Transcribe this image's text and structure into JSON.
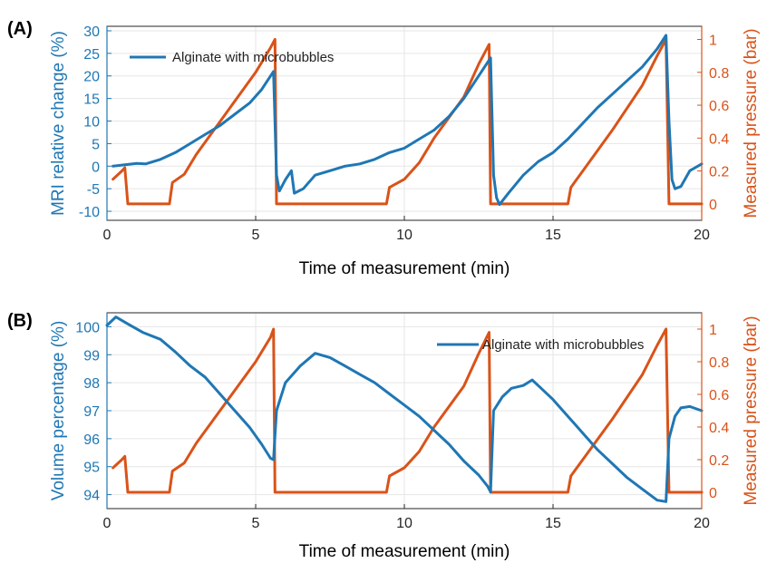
{
  "colors": {
    "left": "#1f77b4",
    "right": "#d95319",
    "grid": "#e6e6e6",
    "axis": "#262626"
  },
  "chart_data": [
    {
      "type": "line",
      "panel_label": "(A)",
      "xlabel": "Time of measurement (min)",
      "ylabel_left": "MRI relative change (%)",
      "ylabel_right": "Measured pressure (bar)",
      "xlim": [
        0,
        20
      ],
      "ylim_left": [
        -12,
        31
      ],
      "ylim_right": [
        -0.1,
        1.08
      ],
      "xticks": [
        "0",
        "5",
        "10",
        "15",
        "20"
      ],
      "yticks_left": [
        "-10",
        "-5",
        "0",
        "5",
        "10",
        "15",
        "20",
        "25",
        "30"
      ],
      "yticks_right": [
        "0",
        "0.2",
        "0.4",
        "0.6",
        "0.8",
        "1"
      ],
      "grid": true,
      "legend": {
        "position": "top-left",
        "entries": [
          "Alginate with microbubbles"
        ]
      },
      "series": [
        {
          "name": "Alginate with microbubbles",
          "axis": "left",
          "color": "#1f77b4",
          "points": [
            [
              0.2,
              0
            ],
            [
              0.6,
              0.3
            ],
            [
              1.0,
              0.6
            ],
            [
              1.3,
              0.5
            ],
            [
              1.8,
              1.5
            ],
            [
              2.3,
              3
            ],
            [
              2.8,
              5
            ],
            [
              3.3,
              7
            ],
            [
              3.8,
              9
            ],
            [
              4.3,
              11.5
            ],
            [
              4.8,
              14
            ],
            [
              5.2,
              17
            ],
            [
              5.6,
              21
            ],
            [
              5.7,
              -2
            ],
            [
              5.8,
              -5.5
            ],
            [
              6.0,
              -3
            ],
            [
              6.2,
              -1
            ],
            [
              6.3,
              -6
            ],
            [
              6.6,
              -5
            ],
            [
              7.0,
              -2
            ],
            [
              7.5,
              -1
            ],
            [
              8.0,
              0
            ],
            [
              8.5,
              0.5
            ],
            [
              9.0,
              1.5
            ],
            [
              9.5,
              3
            ],
            [
              10.0,
              4
            ],
            [
              10.5,
              6
            ],
            [
              11.0,
              8
            ],
            [
              11.5,
              11
            ],
            [
              12.0,
              15
            ],
            [
              12.5,
              20
            ],
            [
              12.9,
              24
            ],
            [
              13.0,
              -2
            ],
            [
              13.1,
              -7
            ],
            [
              13.2,
              -8.5
            ],
            [
              13.5,
              -6
            ],
            [
              14.0,
              -2
            ],
            [
              14.5,
              1
            ],
            [
              15.0,
              3
            ],
            [
              15.5,
              6
            ],
            [
              16.0,
              9.5
            ],
            [
              16.5,
              13
            ],
            [
              17.0,
              16
            ],
            [
              17.5,
              19
            ],
            [
              18.0,
              22
            ],
            [
              18.5,
              26
            ],
            [
              18.8,
              29
            ],
            [
              18.9,
              10
            ],
            [
              19.0,
              -3
            ],
            [
              19.1,
              -5
            ],
            [
              19.3,
              -4.5
            ],
            [
              19.6,
              -1
            ],
            [
              20.0,
              0.5
            ]
          ]
        },
        {
          "name": "",
          "axis": "right",
          "color": "#d95319",
          "points": [
            [
              0.2,
              0.15
            ],
            [
              0.5,
              0.2
            ],
            [
              0.6,
              0.22
            ],
            [
              0.7,
              0
            ],
            [
              2.1,
              0
            ],
            [
              2.2,
              0.13
            ],
            [
              2.6,
              0.18
            ],
            [
              3.0,
              0.3
            ],
            [
              4.0,
              0.55
            ],
            [
              5.0,
              0.8
            ],
            [
              5.5,
              0.95
            ],
            [
              5.65,
              1.0
            ],
            [
              5.7,
              0
            ],
            [
              9.4,
              0
            ],
            [
              9.5,
              0.1
            ],
            [
              10.0,
              0.15
            ],
            [
              10.5,
              0.25
            ],
            [
              11.0,
              0.4
            ],
            [
              12.0,
              0.65
            ],
            [
              12.5,
              0.85
            ],
            [
              12.85,
              0.97
            ],
            [
              12.9,
              0
            ],
            [
              15.5,
              0
            ],
            [
              15.6,
              0.1
            ],
            [
              16.0,
              0.2
            ],
            [
              17.0,
              0.45
            ],
            [
              18.0,
              0.72
            ],
            [
              18.5,
              0.9
            ],
            [
              18.8,
              1.0
            ],
            [
              18.9,
              0
            ],
            [
              20.0,
              0
            ]
          ]
        }
      ]
    },
    {
      "type": "line",
      "panel_label": "(B)",
      "xlabel": "Time of measurement (min)",
      "ylabel_left": "Volume percentage (%)",
      "ylabel_right": "Measured pressure (bar)",
      "xlim": [
        0,
        20
      ],
      "ylim_left": [
        93.5,
        100.5
      ],
      "ylim_right": [
        -0.1,
        1.1
      ],
      "xticks": [
        "0",
        "5",
        "10",
        "15",
        "20"
      ],
      "yticks_left": [
        "94",
        "95",
        "96",
        "97",
        "98",
        "99",
        "100"
      ],
      "yticks_right": [
        "0",
        "0.2",
        "0.4",
        "0.6",
        "0.8",
        "1"
      ],
      "grid": true,
      "legend": {
        "position": "top-right",
        "entries": [
          "Alginate with microbubbles"
        ]
      },
      "series": [
        {
          "name": "Alginate with microbubbles",
          "axis": "left",
          "color": "#1f77b4",
          "points": [
            [
              0,
              100.05
            ],
            [
              0.3,
              100.35
            ],
            [
              0.7,
              100.1
            ],
            [
              1.2,
              99.8
            ],
            [
              1.8,
              99.55
            ],
            [
              2.3,
              99.1
            ],
            [
              2.8,
              98.6
            ],
            [
              3.3,
              98.2
            ],
            [
              3.8,
              97.6
            ],
            [
              4.3,
              97.0
            ],
            [
              4.8,
              96.4
            ],
            [
              5.2,
              95.8
            ],
            [
              5.5,
              95.3
            ],
            [
              5.6,
              95.25
            ],
            [
              5.7,
              97.0
            ],
            [
              6.0,
              98.0
            ],
            [
              6.5,
              98.6
            ],
            [
              7.0,
              99.05
            ],
            [
              7.5,
              98.9
            ],
            [
              8.0,
              98.6
            ],
            [
              8.5,
              98.3
            ],
            [
              9.0,
              98.0
            ],
            [
              9.5,
              97.6
            ],
            [
              10.0,
              97.2
            ],
            [
              10.5,
              96.8
            ],
            [
              11.0,
              96.3
            ],
            [
              11.5,
              95.8
            ],
            [
              12.0,
              95.2
            ],
            [
              12.5,
              94.7
            ],
            [
              12.8,
              94.3
            ],
            [
              12.9,
              94.1
            ],
            [
              13.0,
              97.0
            ],
            [
              13.3,
              97.5
            ],
            [
              13.6,
              97.8
            ],
            [
              14.0,
              97.9
            ],
            [
              14.3,
              98.1
            ],
            [
              14.6,
              97.8
            ],
            [
              15.0,
              97.4
            ],
            [
              15.5,
              96.8
            ],
            [
              16.0,
              96.2
            ],
            [
              16.5,
              95.6
            ],
            [
              17.0,
              95.1
            ],
            [
              17.5,
              94.6
            ],
            [
              18.0,
              94.2
            ],
            [
              18.5,
              93.8
            ],
            [
              18.8,
              93.75
            ],
            [
              18.9,
              96.0
            ],
            [
              19.1,
              96.8
            ],
            [
              19.3,
              97.1
            ],
            [
              19.6,
              97.15
            ],
            [
              20.0,
              97.0
            ]
          ]
        },
        {
          "name": "",
          "axis": "right",
          "color": "#d95319",
          "points": [
            [
              0.2,
              0.15
            ],
            [
              0.5,
              0.2
            ],
            [
              0.6,
              0.22
            ],
            [
              0.7,
              0
            ],
            [
              2.1,
              0
            ],
            [
              2.2,
              0.13
            ],
            [
              2.6,
              0.18
            ],
            [
              3.0,
              0.3
            ],
            [
              4.0,
              0.55
            ],
            [
              5.0,
              0.8
            ],
            [
              5.5,
              0.95
            ],
            [
              5.6,
              1.0
            ],
            [
              5.65,
              0
            ],
            [
              9.4,
              0
            ],
            [
              9.5,
              0.1
            ],
            [
              10.0,
              0.15
            ],
            [
              10.5,
              0.25
            ],
            [
              11.0,
              0.4
            ],
            [
              12.0,
              0.65
            ],
            [
              12.5,
              0.85
            ],
            [
              12.85,
              0.98
            ],
            [
              12.9,
              0
            ],
            [
              15.5,
              0
            ],
            [
              15.6,
              0.1
            ],
            [
              16.0,
              0.2
            ],
            [
              17.0,
              0.45
            ],
            [
              18.0,
              0.72
            ],
            [
              18.5,
              0.9
            ],
            [
              18.8,
              1.0
            ],
            [
              18.9,
              0
            ],
            [
              20.0,
              0
            ]
          ]
        }
      ]
    }
  ]
}
